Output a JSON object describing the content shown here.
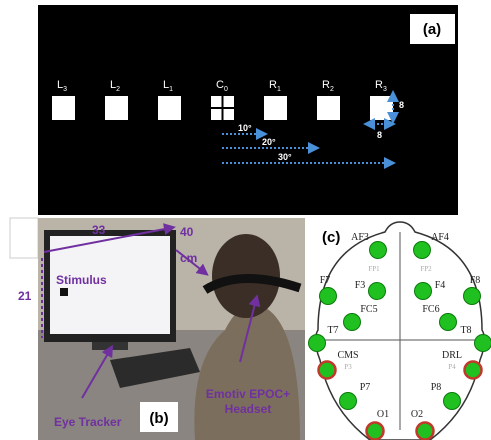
{
  "panel_a": {
    "label": "(a)",
    "targets": [
      {
        "letter": "L",
        "sub": "3"
      },
      {
        "letter": "L",
        "sub": "2"
      },
      {
        "letter": "L",
        "sub": "1"
      },
      {
        "letter": "C",
        "sub": "0"
      },
      {
        "letter": "R",
        "sub": "1"
      },
      {
        "letter": "R",
        "sub": "2"
      },
      {
        "letter": "R",
        "sub": "3"
      }
    ],
    "size_height": "8",
    "size_width": "8",
    "distances": [
      "10°",
      "20°",
      "30°"
    ]
  },
  "panel_b": {
    "label": "(b)",
    "width": "33",
    "distance": "40",
    "distance_unit": "cm",
    "height": "21",
    "stimulus": "Stimulus",
    "eye_tracker": "Eye Tracker",
    "headset_line1": "Emotiv EPOC+",
    "headset_line2": "Headset"
  },
  "panel_c": {
    "label": "(c)",
    "electrodes": [
      "AF3",
      "AF4",
      "F7",
      "F3",
      "F4",
      "F8",
      "FC5",
      "FC6",
      "T7",
      "T8",
      "CMS",
      "DRL",
      "P7",
      "P8",
      "O1",
      "O2"
    ],
    "reference_labels": [
      "FP1",
      "FP2",
      "P3",
      "P4"
    ]
  }
}
